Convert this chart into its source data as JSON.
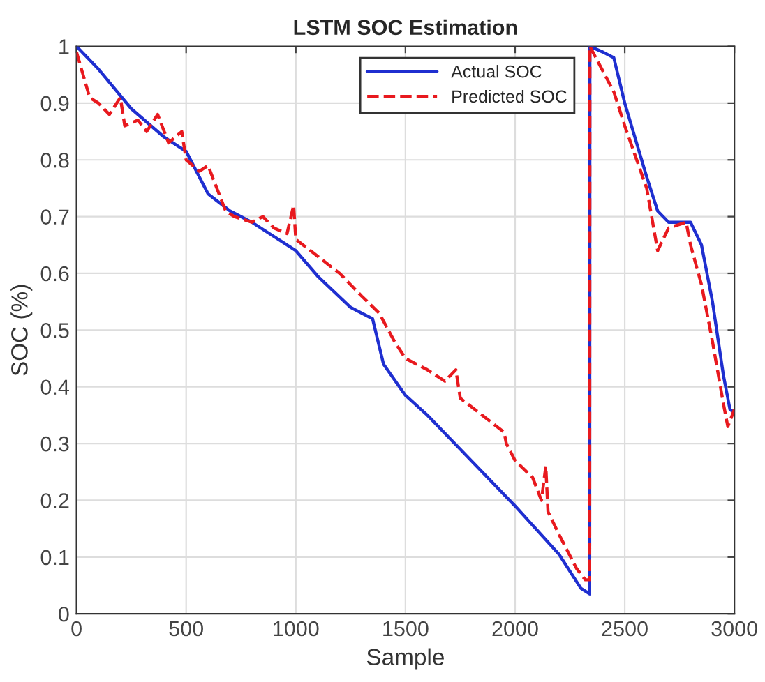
{
  "chart_data": {
    "type": "line",
    "title": "LSTM SOC Estimation",
    "xlabel": "Sample",
    "ylabel": "SOC (%)",
    "xlim": [
      0,
      3000
    ],
    "xticks": [
      0,
      500,
      1000,
      1500,
      2000,
      2500,
      3000
    ],
    "ylim": [
      0,
      1
    ],
    "yticks": [
      0,
      0.1,
      0.2,
      0.3,
      0.4,
      0.5,
      0.6,
      0.7,
      0.8,
      0.9,
      1
    ],
    "grid": true,
    "legend": "top right",
    "series": [
      {
        "name": "Actual SOC",
        "color": "#1f2fd0",
        "line_style": "solid",
        "x": [
          0,
          100,
          250,
          400,
          500,
          600,
          700,
          800,
          1000,
          1100,
          1250,
          1350,
          1400,
          1500,
          1600,
          1750,
          2000,
          2200,
          2300,
          2340,
          2341,
          2400,
          2450,
          2500,
          2600,
          2650,
          2700,
          2800,
          2850,
          2900,
          2950,
          2980,
          3000
        ],
        "values": [
          1.0,
          0.96,
          0.89,
          0.84,
          0.815,
          0.74,
          0.71,
          0.69,
          0.64,
          0.595,
          0.54,
          0.52,
          0.44,
          0.385,
          0.35,
          0.29,
          0.19,
          0.105,
          0.045,
          0.035,
          1.0,
          0.99,
          0.98,
          0.9,
          0.77,
          0.71,
          0.69,
          0.69,
          0.65,
          0.55,
          0.42,
          0.36,
          0.355
        ]
      },
      {
        "name": "Predicted SOC",
        "color": "#e8191e",
        "line_style": "dashed",
        "x": [
          0,
          30,
          60,
          100,
          150,
          200,
          220,
          280,
          320,
          370,
          420,
          450,
          480,
          500,
          560,
          600,
          630,
          680,
          720,
          800,
          850,
          900,
          960,
          990,
          1000,
          1100,
          1200,
          1300,
          1380,
          1450,
          1500,
          1600,
          1680,
          1730,
          1750,
          1850,
          1950,
          1960,
          2000,
          2080,
          2120,
          2140,
          2150,
          2200,
          2280,
          2320,
          2340,
          2341,
          2450,
          2500,
          2600,
          2650,
          2700,
          2780,
          2800,
          2850,
          2900,
          2950,
          2970,
          3000
        ],
        "values": [
          0.99,
          0.95,
          0.91,
          0.9,
          0.88,
          0.91,
          0.86,
          0.87,
          0.85,
          0.88,
          0.83,
          0.84,
          0.85,
          0.8,
          0.78,
          0.79,
          0.76,
          0.71,
          0.7,
          0.69,
          0.7,
          0.68,
          0.67,
          0.72,
          0.66,
          0.63,
          0.6,
          0.56,
          0.53,
          0.48,
          0.45,
          0.43,
          0.41,
          0.43,
          0.38,
          0.35,
          0.32,
          0.3,
          0.27,
          0.24,
          0.2,
          0.26,
          0.18,
          0.14,
          0.08,
          0.06,
          0.06,
          1.0,
          0.92,
          0.86,
          0.75,
          0.64,
          0.68,
          0.69,
          0.65,
          0.58,
          0.48,
          0.37,
          0.33,
          0.36
        ]
      }
    ]
  }
}
